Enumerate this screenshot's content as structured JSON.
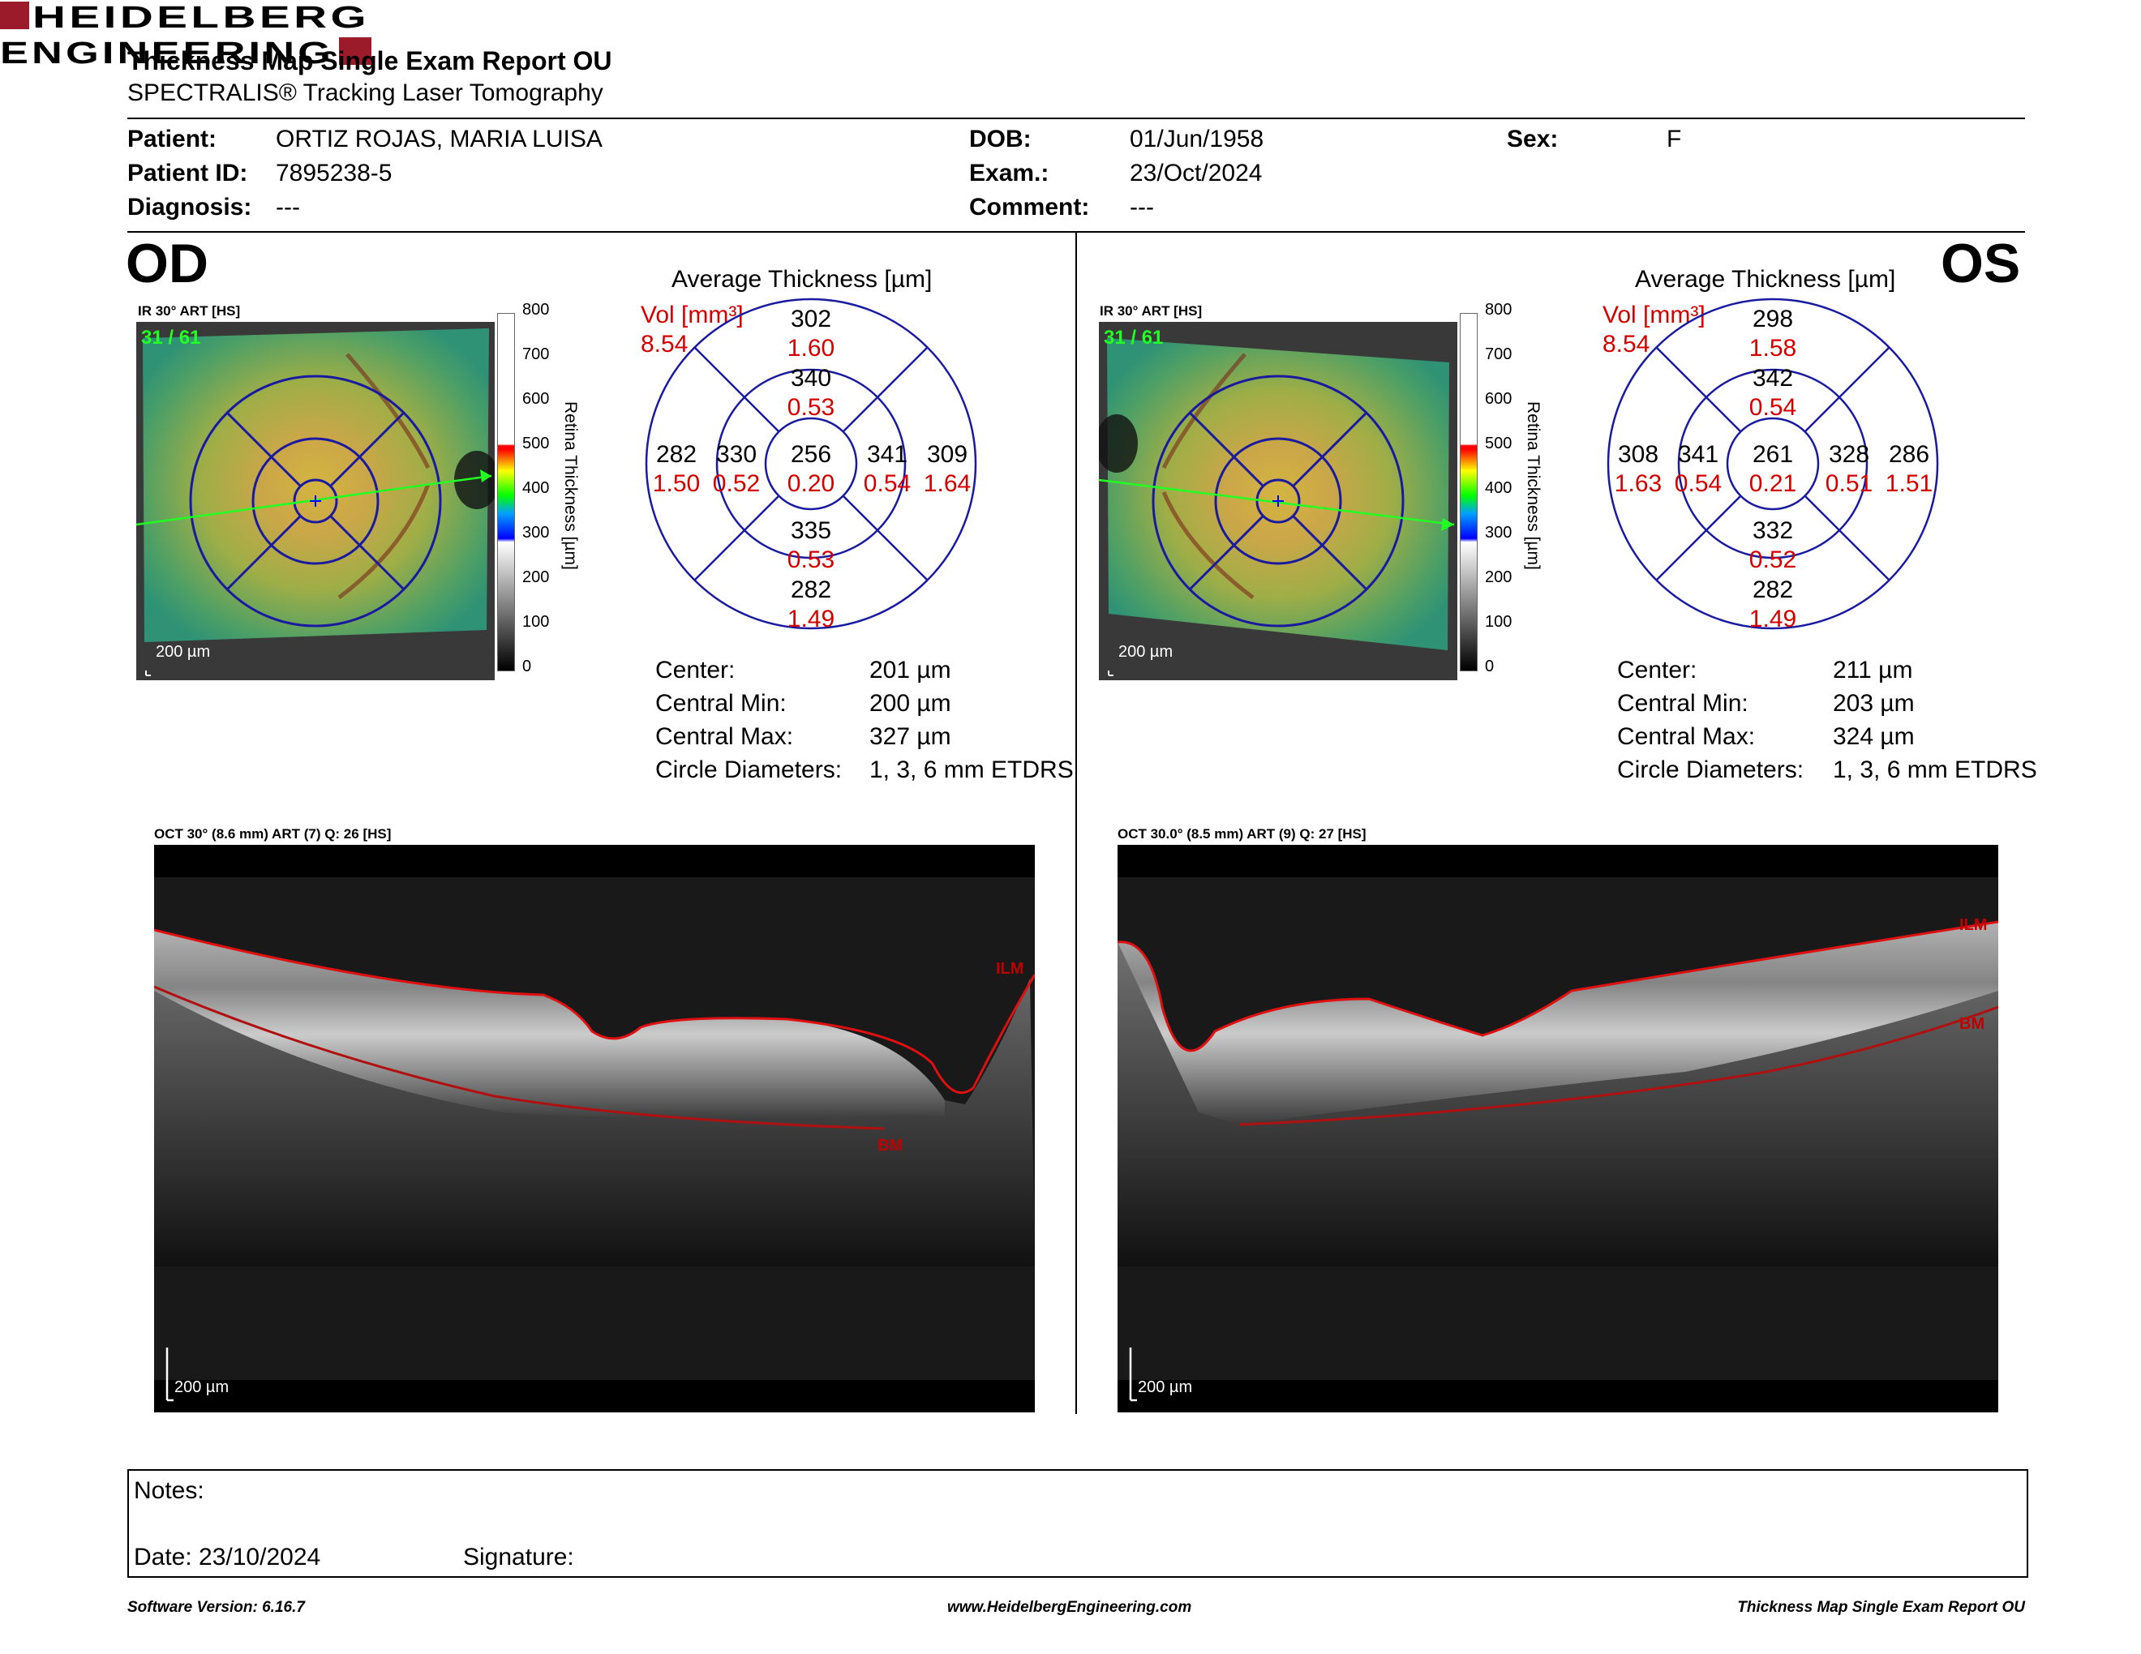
{
  "header": {
    "title": "Thickness Map Single Exam Report OU",
    "subtitle": "SPECTRALIS® Tracking Laser Tomography",
    "logo_line1": "HEIDELBERG",
    "logo_line2": "ENGINEERING"
  },
  "patient": {
    "patient_label": "Patient:",
    "patient_value": "ORTIZ ROJAS, MARIA LUISA",
    "id_label": "Patient ID:",
    "id_value": "7895238-5",
    "diag_label": "Diagnosis:",
    "diag_value": "---",
    "dob_label": "DOB:",
    "dob_value": "01/Jun/1958",
    "exam_label": "Exam.:",
    "exam_value": "23/Oct/2024",
    "comment_label": "Comment:",
    "comment_value": "---",
    "sex_label": "Sex:",
    "sex_value": "F"
  },
  "od": {
    "eye": "OD",
    "image_label": "IR 30° ART [HS]",
    "frames": "31 / 61",
    "scale": "200 µm",
    "avg_title": "Average Thickness [µm]",
    "vol_label": "Vol [mm³]",
    "vol_total": "8.54",
    "sectors": {
      "center": {
        "t": "256",
        "v": "0.20"
      },
      "inner_sup": {
        "t": "340",
        "v": "0.53"
      },
      "inner_inf": {
        "t": "335",
        "v": "0.53"
      },
      "inner_left": {
        "t": "330",
        "v": "0.52"
      },
      "inner_right": {
        "t": "341",
        "v": "0.54"
      },
      "outer_sup": {
        "t": "302",
        "v": "1.60"
      },
      "outer_inf": {
        "t": "282",
        "v": "1.49"
      },
      "outer_left": {
        "t": "282",
        "v": "1.50"
      },
      "outer_right": {
        "t": "309",
        "v": "1.64"
      }
    },
    "stats": {
      "center_label": "Center:",
      "center_value": "201 µm",
      "min_label": "Central Min:",
      "min_value": "200 µm",
      "max_label": "Central Max:",
      "max_value": "327 µm",
      "diam_label": "Circle Diameters:",
      "diam_value": "1, 3, 6 mm ETDRS"
    },
    "oct_label": "OCT 30° (8.6 mm) ART (7) Q: 26 [HS]",
    "oct_scale": "200 µm",
    "ilm": "ILM",
    "bm": "BM"
  },
  "os": {
    "eye": "OS",
    "image_label": "IR 30° ART [HS]",
    "frames": "31 / 61",
    "scale": "200 µm",
    "avg_title": "Average Thickness [µm]",
    "vol_label": "Vol [mm³]",
    "vol_total": "8.54",
    "sectors": {
      "center": {
        "t": "261",
        "v": "0.21"
      },
      "inner_sup": {
        "t": "342",
        "v": "0.54"
      },
      "inner_inf": {
        "t": "332",
        "v": "0.52"
      },
      "inner_left": {
        "t": "341",
        "v": "0.54"
      },
      "inner_right": {
        "t": "328",
        "v": "0.51"
      },
      "outer_sup": {
        "t": "298",
        "v": "1.58"
      },
      "outer_inf": {
        "t": "282",
        "v": "1.49"
      },
      "outer_left": {
        "t": "308",
        "v": "1.63"
      },
      "outer_right": {
        "t": "286",
        "v": "1.51"
      }
    },
    "stats": {
      "center_label": "Center:",
      "center_value": "211 µm",
      "min_label": "Central Min:",
      "min_value": "203 µm",
      "max_label": "Central Max:",
      "max_value": "324 µm",
      "diam_label": "Circle Diameters:",
      "diam_value": "1, 3, 6 mm ETDRS"
    },
    "oct_label": "OCT 30.0° (8.5 mm) ART (9) Q: 27 [HS]",
    "oct_scale": "200 µm",
    "ilm": "ILM",
    "bm": "BM"
  },
  "colorbar": {
    "title": "Retina  Thickness [µm]",
    "ticks": [
      "800",
      "700",
      "600",
      "500",
      "400",
      "300",
      "200",
      "100",
      "0"
    ]
  },
  "notes": {
    "notes_label": "Notes:",
    "date_label": "Date: 23/10/2024",
    "signature_label": "Signature:"
  },
  "footer": {
    "left": "Software Version: 6.16.7",
    "center": "www.HeidelbergEngineering.com",
    "right": "Thickness Map Single Exam Report OU"
  },
  "colors": {
    "accent_red": "#d40000",
    "logo_red": "#9b1b2a",
    "grid_blue": "#1a1aa0"
  }
}
